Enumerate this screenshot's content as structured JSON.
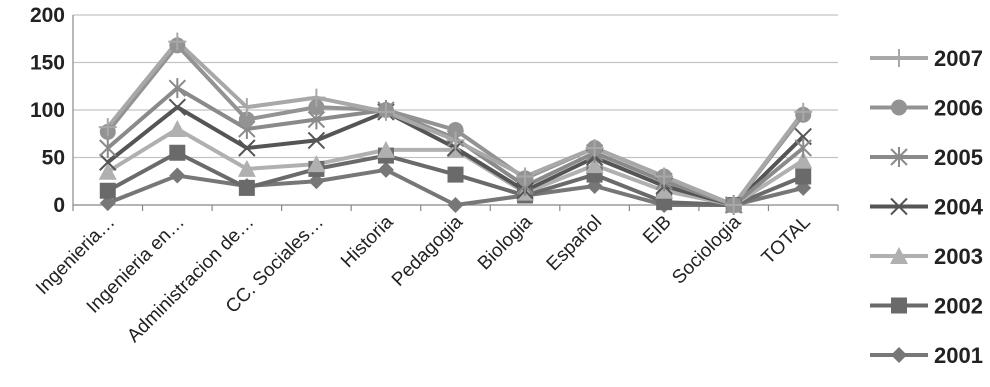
{
  "chart_data": {
    "type": "line",
    "title": "",
    "xlabel": "",
    "ylabel": "",
    "ylim": [
      0,
      200
    ],
    "yticks": [
      0,
      50,
      100,
      150,
      200
    ],
    "grid": "horizontal",
    "legend_position": "right",
    "categories": [
      "Ingenieria…",
      "Ingenieria en…",
      "Administracion de…",
      "CC. Sociales…",
      "Historia",
      "Pedagogia",
      "Biologia",
      "Español",
      "EIB",
      "Sociologia",
      "TOTAL"
    ],
    "series": [
      {
        "name": "2007",
        "marker": "plus",
        "color": "#a8a8a8",
        "values": [
          82,
          172,
          103,
          113,
          98,
          68,
          30,
          60,
          30,
          0,
          98
        ]
      },
      {
        "name": "2006",
        "marker": "circle",
        "color": "#939393",
        "values": [
          77,
          168,
          90,
          103,
          100,
          79,
          28,
          60,
          30,
          0,
          95
        ]
      },
      {
        "name": "2005",
        "marker": "asterisk",
        "color": "#8a8a8a",
        "values": [
          60,
          123,
          80,
          90,
          100,
          70,
          20,
          55,
          25,
          0,
          60
        ]
      },
      {
        "name": "2004",
        "marker": "x",
        "color": "#555555",
        "values": [
          45,
          103,
          60,
          68,
          98,
          60,
          15,
          50,
          20,
          0,
          72
        ]
      },
      {
        "name": "2003",
        "marker": "triangle",
        "color": "#b0b0b0",
        "values": [
          35,
          80,
          38,
          43,
          58,
          58,
          13,
          42,
          15,
          0,
          47
        ]
      },
      {
        "name": "2002",
        "marker": "square",
        "color": "#6a6a6a",
        "values": [
          15,
          55,
          18,
          38,
          52,
          32,
          10,
          32,
          3,
          0,
          30
        ]
      },
      {
        "name": "2001",
        "marker": "diamond",
        "color": "#777777",
        "values": [
          2,
          31,
          20,
          25,
          37,
          0,
          10,
          20,
          0,
          0,
          18
        ]
      }
    ]
  }
}
